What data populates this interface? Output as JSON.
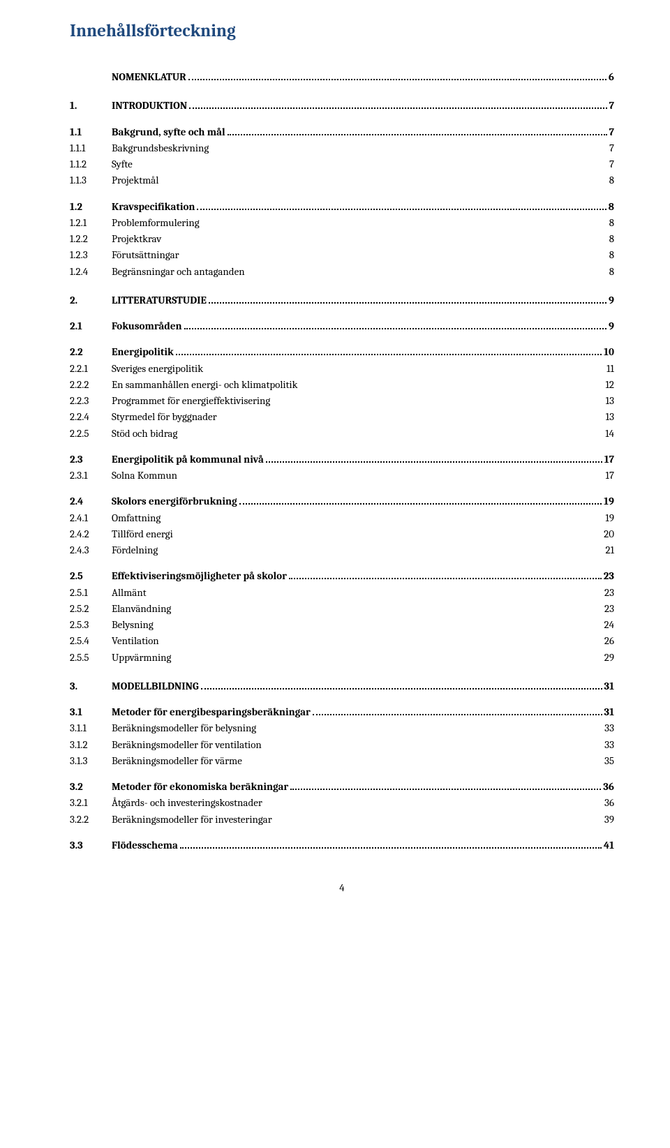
{
  "title": "Innehållsförteckning",
  "page_number": "4",
  "colors": {
    "heading": "#1f497d",
    "text": "#000000",
    "bg": "#ffffff"
  },
  "fonts": {
    "body_family": "Cambria",
    "title_size_pt": 19,
    "row_size_pt": 11
  },
  "toc": [
    {
      "level": 0,
      "num": "",
      "text": "NOMENKLATUR",
      "page": "6",
      "dots": true
    },
    {
      "level": 0,
      "num": "1.",
      "text": "INTRODUKTION",
      "page": "7",
      "dots": true
    },
    {
      "level": 1,
      "num": "1.1",
      "text": "Bakgrund, syfte och mål",
      "page": "7",
      "dots": true
    },
    {
      "level": 2,
      "num": "1.1.1",
      "text": "Bakgrundsbeskrivning",
      "page": "7",
      "dots": false
    },
    {
      "level": 2,
      "num": "1.1.2",
      "text": "Syfte",
      "page": "7",
      "dots": false
    },
    {
      "level": 2,
      "num": "1.1.3",
      "text": "Projektmål",
      "page": "8",
      "dots": false
    },
    {
      "level": 1,
      "num": "1.2",
      "text": "Kravspecifikation",
      "page": "8",
      "dots": true
    },
    {
      "level": 2,
      "num": "1.2.1",
      "text": "Problemformulering",
      "page": "8",
      "dots": false
    },
    {
      "level": 2,
      "num": "1.2.2",
      "text": "Projektkrav",
      "page": "8",
      "dots": false
    },
    {
      "level": 2,
      "num": "1.2.3",
      "text": "Förutsättningar",
      "page": "8",
      "dots": false
    },
    {
      "level": 2,
      "num": "1.2.4",
      "text": "Begränsningar och antaganden",
      "page": "8",
      "dots": false
    },
    {
      "level": 0,
      "num": "2.",
      "text": "LITTERATURSTUDIE",
      "page": "9",
      "dots": true
    },
    {
      "level": 1,
      "num": "2.1",
      "text": "Fokusområden",
      "page": "9",
      "dots": true
    },
    {
      "level": 1,
      "num": "2.2",
      "text": "Energipolitik",
      "page": "10",
      "dots": true
    },
    {
      "level": 2,
      "num": "2.2.1",
      "text": "Sveriges energipolitik",
      "page": "11",
      "dots": false
    },
    {
      "level": 2,
      "num": "2.2.2",
      "text": "En sammanhållen energi- och klimatpolitik",
      "page": "12",
      "dots": false
    },
    {
      "level": 2,
      "num": "2.2.3",
      "text": "Programmet för energieffektivisering",
      "page": "13",
      "dots": false
    },
    {
      "level": 2,
      "num": "2.2.4",
      "text": "Styrmedel för byggnader",
      "page": "13",
      "dots": false
    },
    {
      "level": 2,
      "num": "2.2.5",
      "text": "Stöd och bidrag",
      "page": "14",
      "dots": false
    },
    {
      "level": 1,
      "num": "2.3",
      "text": "Energipolitik på kommunal nivå",
      "page": "17",
      "dots": true
    },
    {
      "level": 2,
      "num": "2.3.1",
      "text": "Solna Kommun",
      "page": "17",
      "dots": false
    },
    {
      "level": 1,
      "num": "2.4",
      "text": "Skolors energiförbrukning",
      "page": "19",
      "dots": true
    },
    {
      "level": 2,
      "num": "2.4.1",
      "text": "Omfattning",
      "page": "19",
      "dots": false
    },
    {
      "level": 2,
      "num": "2.4.2",
      "text": "Tillförd energi",
      "page": "20",
      "dots": false
    },
    {
      "level": 2,
      "num": "2.4.3",
      "text": "Fördelning",
      "page": "21",
      "dots": false
    },
    {
      "level": 1,
      "num": "2.5",
      "text": "Effektiviseringsmöjligheter på skolor",
      "page": "23",
      "dots": true
    },
    {
      "level": 2,
      "num": "2.5.1",
      "text": "Allmänt",
      "page": "23",
      "dots": false
    },
    {
      "level": 2,
      "num": "2.5.2",
      "text": "Elanvändning",
      "page": "23",
      "dots": false
    },
    {
      "level": 2,
      "num": "2.5.3",
      "text": "Belysning",
      "page": "24",
      "dots": false
    },
    {
      "level": 2,
      "num": "2.5.4",
      "text": "Ventilation",
      "page": "26",
      "dots": false
    },
    {
      "level": 2,
      "num": "2.5.5",
      "text": "Uppvärmning",
      "page": "29",
      "dots": false
    },
    {
      "level": 0,
      "num": "3.",
      "text": "MODELLBILDNING",
      "page": "31",
      "dots": true
    },
    {
      "level": 1,
      "num": "3.1",
      "text": "Metoder för energibesparingsberäkningar",
      "page": "31",
      "dots": true
    },
    {
      "level": 2,
      "num": "3.1.1",
      "text": "Beräkningsmodeller för belysning",
      "page": "33",
      "dots": false
    },
    {
      "level": 2,
      "num": "3.1.2",
      "text": "Beräkningsmodeller för ventilation",
      "page": "33",
      "dots": false
    },
    {
      "level": 2,
      "num": "3.1.3",
      "text": "Beräkningsmodeller för värme",
      "page": "35",
      "dots": false
    },
    {
      "level": 1,
      "num": "3.2",
      "text": "Metoder för ekonomiska beräkningar",
      "page": "36",
      "dots": true
    },
    {
      "level": 2,
      "num": "3.2.1",
      "text": "Åtgärds- och investeringskostnader",
      "page": "36",
      "dots": false
    },
    {
      "level": 2,
      "num": "3.2.2",
      "text": "Beräkningsmodeller för investeringar",
      "page": "39",
      "dots": false
    },
    {
      "level": 1,
      "num": "3.3",
      "text": "Flödesschema",
      "page": "41",
      "dots": true
    }
  ]
}
